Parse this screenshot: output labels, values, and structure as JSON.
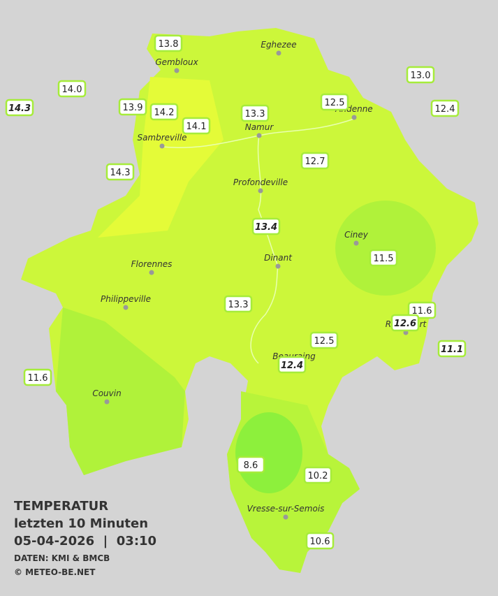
{
  "cities": [
    "Eghezee",
    "Gembloux",
    "Andenne",
    "Namur",
    "Sambreville",
    "Profondeville",
    "Ciney",
    "Dinant",
    "Florennes",
    "Philippeville",
    "Rochefort",
    "Beauraing",
    "Couvin",
    "Vresse-sur-Semois"
  ],
  "stations": [
    "13.8",
    "14.0",
    "14.3",
    "13.9",
    "14.2",
    "14.1",
    "13.3",
    "12.5",
    "13.0",
    "12.4",
    "14.3",
    "12.7",
    "13.4",
    "11.5",
    "13.3",
    "11.6",
    "12.6",
    "12.5",
    "11.1",
    "12.4",
    "11.6",
    "8.6",
    "10.2",
    "10.6"
  ],
  "legend": {
    "title": "TEMPERATUR",
    "period": "letzten 10 Minuten",
    "datetime": "05-04-2026  |  03:10",
    "source": "DATEN: KMI & BMCB",
    "copyright": "© METEO-BE.NET"
  }
}
